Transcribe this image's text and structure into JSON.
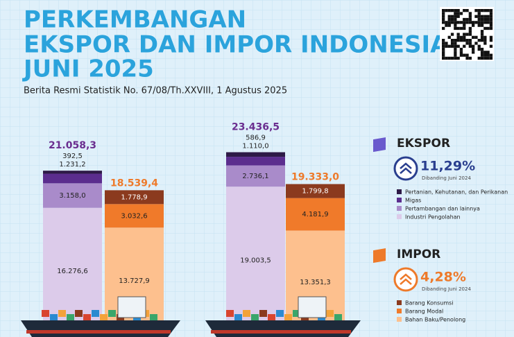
{
  "chart_data": {
    "type": "stacked_bar",
    "title": [
      "PERKEMBANGAN",
      "EKSPOR DAN IMPOR INDONESIA",
      "JUNI 2025"
    ],
    "subtitle": "Berita Resmi Statistik No. 67/08/Th.XXVIII, 1 Agustus 2025",
    "categories": [
      null,
      null
    ],
    "ekspor": {
      "label": "EKSPOR",
      "growth": 11.29,
      "growth_label": "11,29%",
      "note": "Dibanding Juni 2024",
      "totals": [
        21058.3,
        23436.5
      ],
      "total_labels": [
        "21.058,3",
        "23.436,5"
      ],
      "total_color": "#6a2d8f",
      "series": [
        {
          "name": "Pertanian, Kehutanan, dan Perikanan",
          "color": "#2e1a47",
          "values": [
            392.5,
            586.9
          ],
          "value_labels": [
            "392,5",
            "586,9"
          ]
        },
        {
          "name": "Migas",
          "color": "#5b2d8e",
          "values": [
            1231.2,
            1110.0
          ],
          "value_labels": [
            "1.231,2",
            "1.110,0"
          ]
        },
        {
          "name": "Pertambangan dan lainnya",
          "color": "#a98bca",
          "values": [
            3158.0,
            2736.1
          ],
          "value_labels": [
            "3.158,0",
            "2.736,1"
          ]
        },
        {
          "name": "Industri Pengolahan",
          "color": "#dccbea",
          "values": [
            16276.6,
            19003.5
          ],
          "value_labels": [
            "16.276,6",
            "19.003,5"
          ]
        }
      ]
    },
    "impor": {
      "label": "IMPOR",
      "growth": 4.28,
      "growth_label": "4,28%",
      "note": "Dibanding Juni 2024",
      "totals": [
        18539.4,
        19333.0
      ],
      "total_labels": [
        "18.539,4",
        "19.333,0"
      ],
      "total_color": "#ee7a2a",
      "series": [
        {
          "name": "Barang Konsumsi",
          "color": "#8b3a1e",
          "values": [
            1778.9,
            1799.8
          ],
          "value_labels": [
            "1.778,9",
            "1.799,8"
          ]
        },
        {
          "name": "Barang Modal",
          "color": "#f07a2a",
          "values": [
            3032.6,
            4181.9
          ],
          "value_labels": [
            "3.032,6",
            "4.181,9"
          ]
        },
        {
          "name": "Bahan Baku/Penolong",
          "color": "#fdc08e",
          "values": [
            13727.9,
            13351.3
          ],
          "value_labels": [
            "13.727,9",
            "13.351,3"
          ]
        }
      ]
    }
  }
}
